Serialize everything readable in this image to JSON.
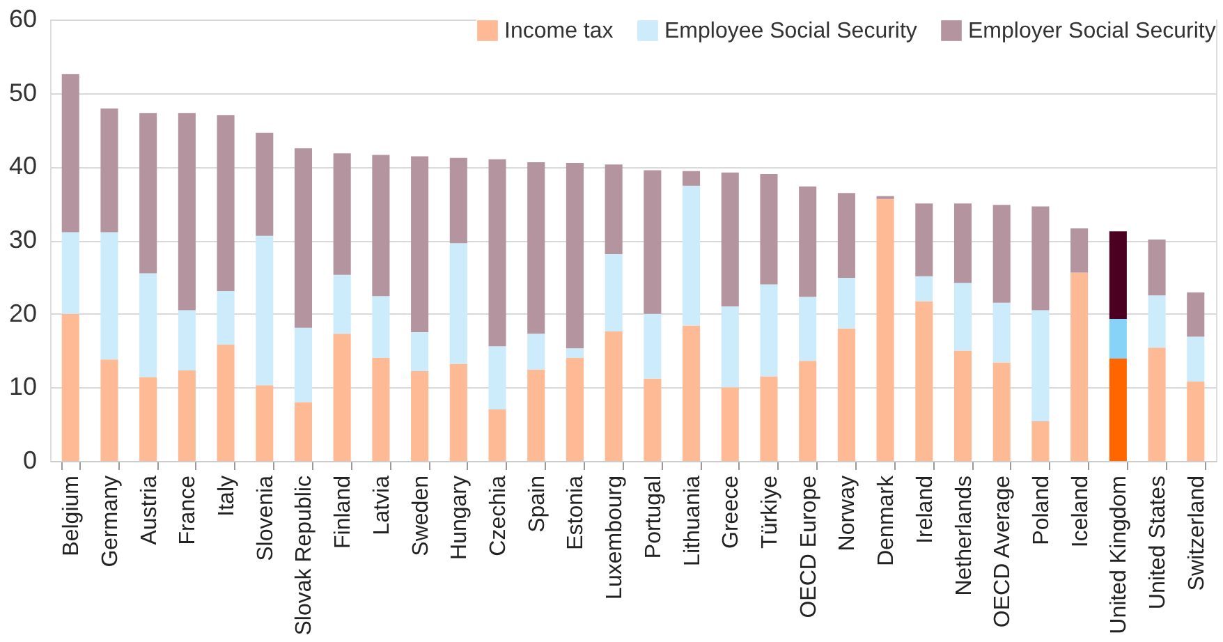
{
  "chart_data": {
    "type": "bar",
    "stacked": true,
    "categories": [
      "Belgium",
      "Germany",
      "Austria",
      "France",
      "Italy",
      "Slovenia",
      "Slovak Republic",
      "Finland",
      "Latvia",
      "Sweden",
      "Hungary",
      "Czechia",
      "Spain",
      "Estonia",
      "Luxembourg",
      "Portugal",
      "Lithuania",
      "Greece",
      "Türkiye",
      "OECD Europe",
      "Norway",
      "Denmark",
      "Ireland",
      "Netherlands",
      "OECD Average",
      "Poland",
      "Iceland",
      "United Kingdom",
      "United States",
      "Switzerland"
    ],
    "series": [
      {
        "name": "Income tax",
        "color": "#fdba94",
        "colors": [
          "#fdba94",
          "#fdba94",
          "#fdba94",
          "#fdba94",
          "#fdba94",
          "#fdba94",
          "#fdba94",
          "#fdba94",
          "#fdba94",
          "#fdba94",
          "#fdba94",
          "#fdba94",
          "#fdba94",
          "#fdba94",
          "#fdba94",
          "#fdba94",
          "#fdba94",
          "#fdba94",
          "#fdba94",
          "#fdba94",
          "#fdba94",
          "#fdba94",
          "#fdba94",
          "#fdba94",
          "#fdba94",
          "#fdba94",
          "#fdba94",
          "#ff6600",
          "#fdba94",
          "#fdba94"
        ],
        "values": [
          20.0,
          13.8,
          11.4,
          12.3,
          15.8,
          10.3,
          8.0,
          17.3,
          14.0,
          12.2,
          13.2,
          7.0,
          12.4,
          14.0,
          17.6,
          11.2,
          18.4,
          10.0,
          11.5,
          13.6,
          18.0,
          35.6,
          21.7,
          15.0,
          13.4,
          5.4,
          25.6,
          13.9,
          15.4,
          10.8
        ]
      },
      {
        "name": "Employee Social Security",
        "color": "#ccecfb",
        "colors": [
          "#ccecfb",
          "#ccecfb",
          "#ccecfb",
          "#ccecfb",
          "#ccecfb",
          "#ccecfb",
          "#ccecfb",
          "#ccecfb",
          "#ccecfb",
          "#ccecfb",
          "#ccecfb",
          "#ccecfb",
          "#ccecfb",
          "#ccecfb",
          "#ccecfb",
          "#ccecfb",
          "#ccecfb",
          "#ccecfb",
          "#ccecfb",
          "#ccecfb",
          "#ccecfb",
          "#ccecfb",
          "#ccecfb",
          "#ccecfb",
          "#ccecfb",
          "#ccecfb",
          "#ccecfb",
          "#87d3f8",
          "#ccecfb",
          "#ccecfb"
        ],
        "values": [
          11.1,
          17.3,
          14.1,
          8.2,
          7.3,
          20.3,
          10.1,
          8.0,
          8.4,
          5.3,
          16.4,
          8.6,
          4.9,
          1.3,
          10.5,
          8.8,
          19.0,
          11.0,
          12.5,
          8.7,
          6.9,
          0,
          3.4,
          9.2,
          8.1,
          15.1,
          0,
          5.4,
          7.1,
          6.1
        ]
      },
      {
        "name": "Employer Social Security",
        "color": "#b4949f",
        "colors": [
          "#b4949f",
          "#b4949f",
          "#b4949f",
          "#b4949f",
          "#b4949f",
          "#b4949f",
          "#b4949f",
          "#b4949f",
          "#b4949f",
          "#b4949f",
          "#b4949f",
          "#b4949f",
          "#b4949f",
          "#b4949f",
          "#b4949f",
          "#b4949f",
          "#b4949f",
          "#b4949f",
          "#b4949f",
          "#b4949f",
          "#b4949f",
          "#b4949f",
          "#b4949f",
          "#b4949f",
          "#b4949f",
          "#b4949f",
          "#b4949f",
          "#4b0022",
          "#b4949f",
          "#b4949f"
        ],
        "values": [
          21.5,
          16.8,
          21.8,
          26.8,
          23.9,
          14.0,
          24.4,
          16.5,
          19.2,
          23.9,
          11.6,
          25.4,
          23.3,
          25.2,
          12.2,
          19.5,
          2.0,
          18.2,
          15.0,
          15.0,
          11.5,
          0.4,
          9.9,
          10.8,
          13.3,
          14.1,
          6.0,
          11.9,
          7.6,
          6.0
        ]
      }
    ],
    "ylim": [
      0,
      60
    ],
    "yticks": [
      0,
      10,
      20,
      30,
      40,
      50,
      60
    ],
    "grid": "y",
    "legend": "top right"
  }
}
